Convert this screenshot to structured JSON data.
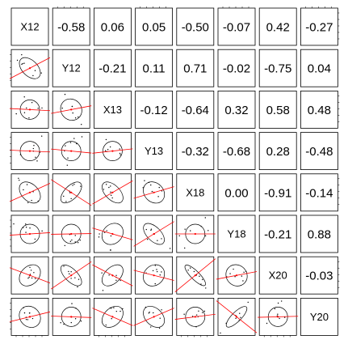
{
  "chart_data": {
    "type": "scatterplot-matrix",
    "variables": [
      "X12",
      "Y12",
      "X13",
      "Y13",
      "X18",
      "Y18",
      "X20",
      "Y20"
    ],
    "correlations": [
      [
        1.0,
        -0.58,
        0.06,
        0.05,
        -0.5,
        -0.07,
        0.42,
        -0.27
      ],
      [
        -0.58,
        1.0,
        -0.21,
        0.11,
        0.71,
        -0.02,
        -0.75,
        0.04
      ],
      [
        0.06,
        -0.21,
        1.0,
        -0.12,
        -0.64,
        0.32,
        0.58,
        0.48
      ],
      [
        0.05,
        0.11,
        -0.12,
        1.0,
        -0.32,
        -0.68,
        0.28,
        -0.48
      ],
      [
        -0.5,
        0.71,
        -0.64,
        -0.32,
        1.0,
        0.0,
        -0.91,
        -0.14
      ],
      [
        -0.07,
        -0.02,
        0.32,
        -0.68,
        0.0,
        1.0,
        -0.21,
        0.88
      ],
      [
        0.42,
        -0.75,
        0.58,
        0.28,
        -0.91,
        -0.21,
        1.0,
        -0.03
      ],
      [
        -0.27,
        0.04,
        0.48,
        -0.48,
        -0.14,
        0.88,
        -0.03,
        1.0
      ]
    ],
    "upper_panel": "correlation values",
    "lower_panel": "scatter with ellipse and red fit line",
    "diagonal": "variable names",
    "colors": {
      "fit_line": "#ff0000",
      "ellipse": "#000000",
      "points": "#000000"
    }
  }
}
